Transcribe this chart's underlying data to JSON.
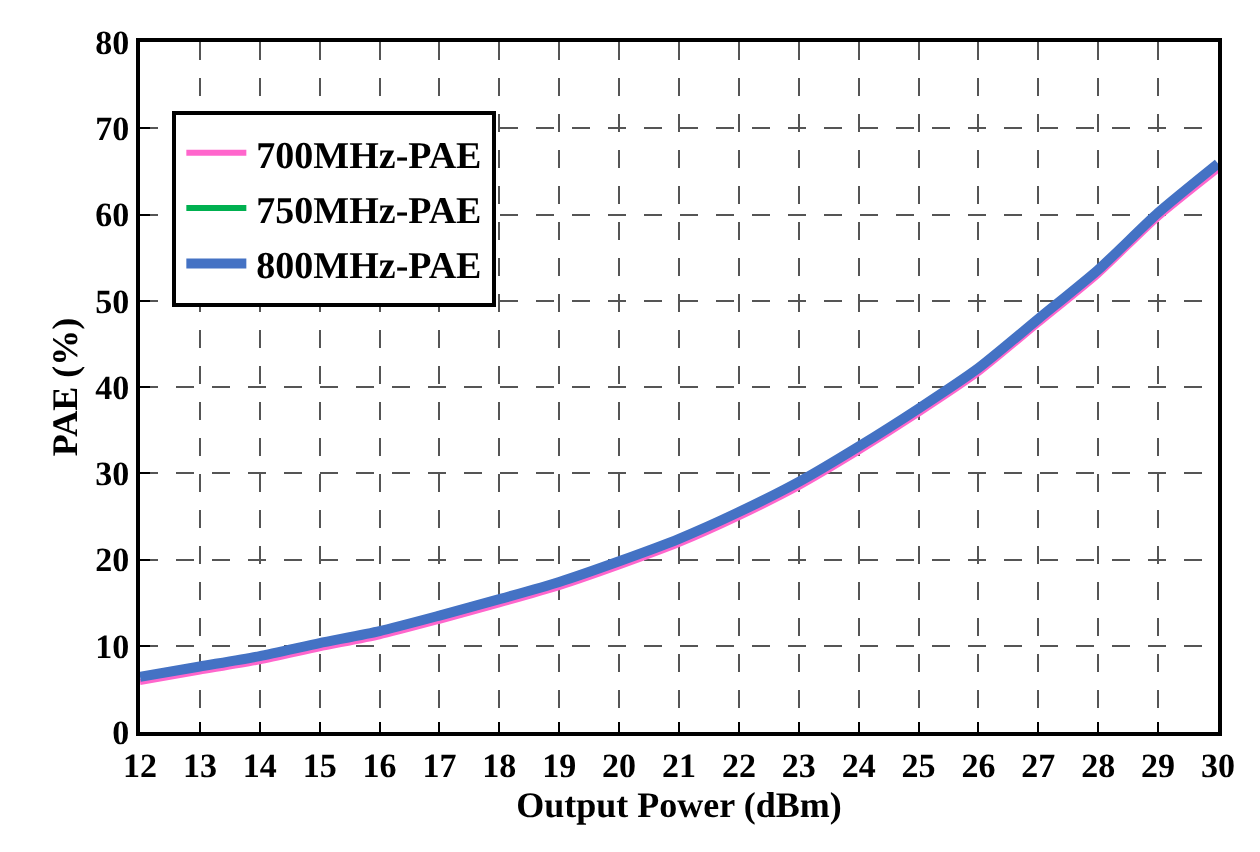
{
  "chart_data": {
    "type": "line",
    "xlabel": "Output Power (dBm)",
    "ylabel": "PAE (%)",
    "x": [
      12,
      13,
      14,
      15,
      16,
      17,
      18,
      19,
      20,
      21,
      22,
      23,
      24,
      25,
      26,
      27,
      28,
      29,
      30
    ],
    "series": [
      {
        "name": "700MHz-PAE",
        "color": "#ff66cc",
        "values": [
          5.8,
          7.0,
          8.2,
          9.7,
          11.1,
          12.9,
          14.8,
          16.8,
          19.2,
          21.8,
          24.9,
          28.4,
          32.5,
          36.9,
          41.6,
          47.3,
          53.0,
          59.6,
          65.2
        ]
      },
      {
        "name": "750MHz-PAE",
        "color": "#00b050",
        "values": [
          null,
          null,
          null,
          null,
          null,
          null,
          null,
          null,
          null,
          null,
          null,
          null,
          null,
          null,
          null,
          null,
          null,
          null,
          null
        ]
      },
      {
        "name": "800MHz-PAE",
        "color": "#4472c4",
        "values": [
          6.4,
          7.6,
          8.8,
          10.3,
          11.7,
          13.5,
          15.4,
          17.4,
          19.8,
          22.4,
          25.5,
          29.0,
          33.1,
          37.5,
          42.2,
          47.9,
          53.6,
          60.2,
          65.9
        ]
      }
    ],
    "xlim": [
      12,
      30
    ],
    "xticks": [
      12,
      13,
      14,
      15,
      16,
      17,
      18,
      19,
      20,
      21,
      22,
      23,
      24,
      25,
      26,
      27,
      28,
      29,
      30
    ],
    "ylim": [
      0,
      80
    ],
    "yticks": [
      0,
      10,
      20,
      30,
      40,
      50,
      60,
      70,
      80
    ],
    "grid": true,
    "legend": "top left",
    "marker": "none",
    "line_style": "solid"
  }
}
